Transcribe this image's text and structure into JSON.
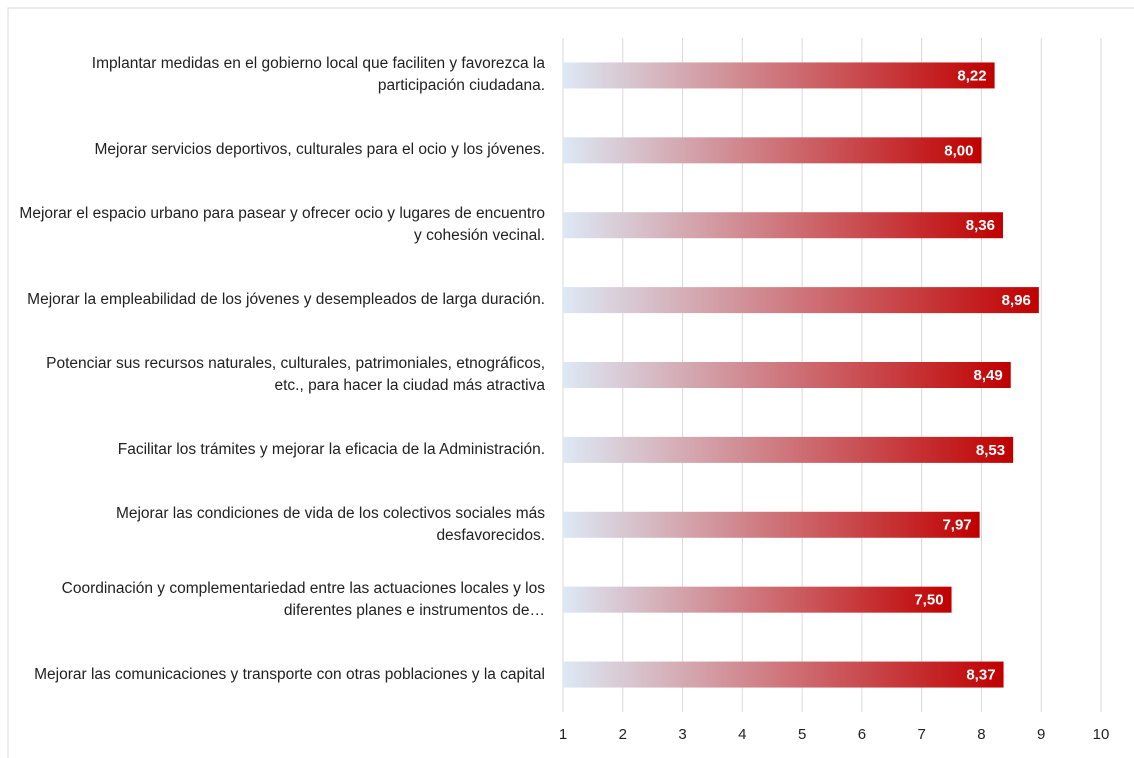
{
  "chart_data": {
    "type": "barh",
    "categories": [
      "Implantar medidas en el gobierno local que faciliten y favorezca la participación ciudadana.",
      "Mejorar servicios deportivos, culturales para el ocio y los jóvenes.",
      "Mejorar el espacio urbano para pasear y ofrecer ocio y lugares de encuentro y cohesión vecinal.",
      "Mejorar la empleabilidad de los jóvenes y desempleados de larga duración.",
      "Potenciar sus recursos naturales, culturales, patrimoniales, etnográficos, etc., para hacer la ciudad más atractiva",
      "Facilitar los trámites y mejorar la eficacia de la Administración.",
      "Mejorar las condiciones de vida de los colectivos sociales más desfavorecidos.",
      "Coordinación y complementariedad entre las actuaciones locales y los diferentes planes e instrumentos de…",
      "Mejorar las comunicaciones y transporte con otras poblaciones y la capital"
    ],
    "values": [
      8.22,
      8.0,
      8.36,
      8.96,
      8.49,
      8.53,
      7.97,
      7.5,
      8.37
    ],
    "value_labels": [
      "8,22",
      "8,00",
      "8,36",
      "8,96",
      "8,49",
      "8,53",
      "7,97",
      "7,50",
      "8,37"
    ],
    "color": [
      "#dce9f5",
      "#c00000"
    ],
    "xlim": [
      1,
      10
    ],
    "xticks": [
      1,
      2,
      3,
      4,
      5,
      6,
      7,
      8,
      9,
      10
    ],
    "grid": true
  }
}
